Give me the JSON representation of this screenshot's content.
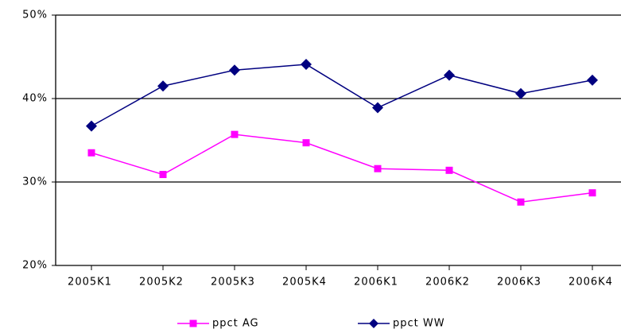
{
  "chart_data": {
    "type": "line",
    "categories": [
      "2005K1",
      "2005K2",
      "2005K3",
      "2005K4",
      "2006K1",
      "2006K2",
      "2006K3",
      "2006K4"
    ],
    "series": [
      {
        "name": "ppct AG",
        "color": "#ff00ff",
        "marker": "square",
        "values": [
          33.5,
          30.9,
          35.7,
          34.7,
          31.6,
          31.4,
          27.6,
          28.7
        ]
      },
      {
        "name": "ppct WW",
        "color": "#000080",
        "marker": "diamond",
        "values": [
          36.7,
          41.5,
          43.4,
          44.1,
          38.9,
          42.8,
          40.6,
          42.2
        ]
      }
    ],
    "ylim": [
      20,
      50
    ],
    "yticks": [
      {
        "value": 20,
        "label": "20%"
      },
      {
        "value": 30,
        "label": "30%"
      },
      {
        "value": 40,
        "label": "40%"
      },
      {
        "value": 50,
        "label": "50%"
      }
    ],
    "grid": true,
    "legend": "bottom"
  }
}
